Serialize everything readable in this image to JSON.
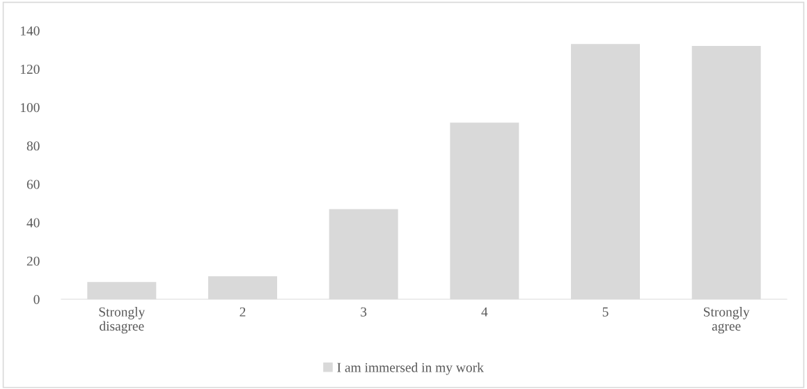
{
  "chart_data": {
    "type": "bar",
    "categories": [
      "Strongly\ndisagree",
      "2",
      "3",
      "4",
      "5",
      "Strongly\nagree"
    ],
    "series": [
      {
        "name": "I am immersed in my work",
        "color": "#d9d9d9",
        "values": [
          9,
          12,
          47,
          92,
          133,
          132
        ]
      }
    ],
    "ylim": [
      0,
      140
    ],
    "yticks": [
      0,
      20,
      40,
      60,
      80,
      100,
      120,
      140
    ],
    "grid": false,
    "legend": "bottom"
  }
}
